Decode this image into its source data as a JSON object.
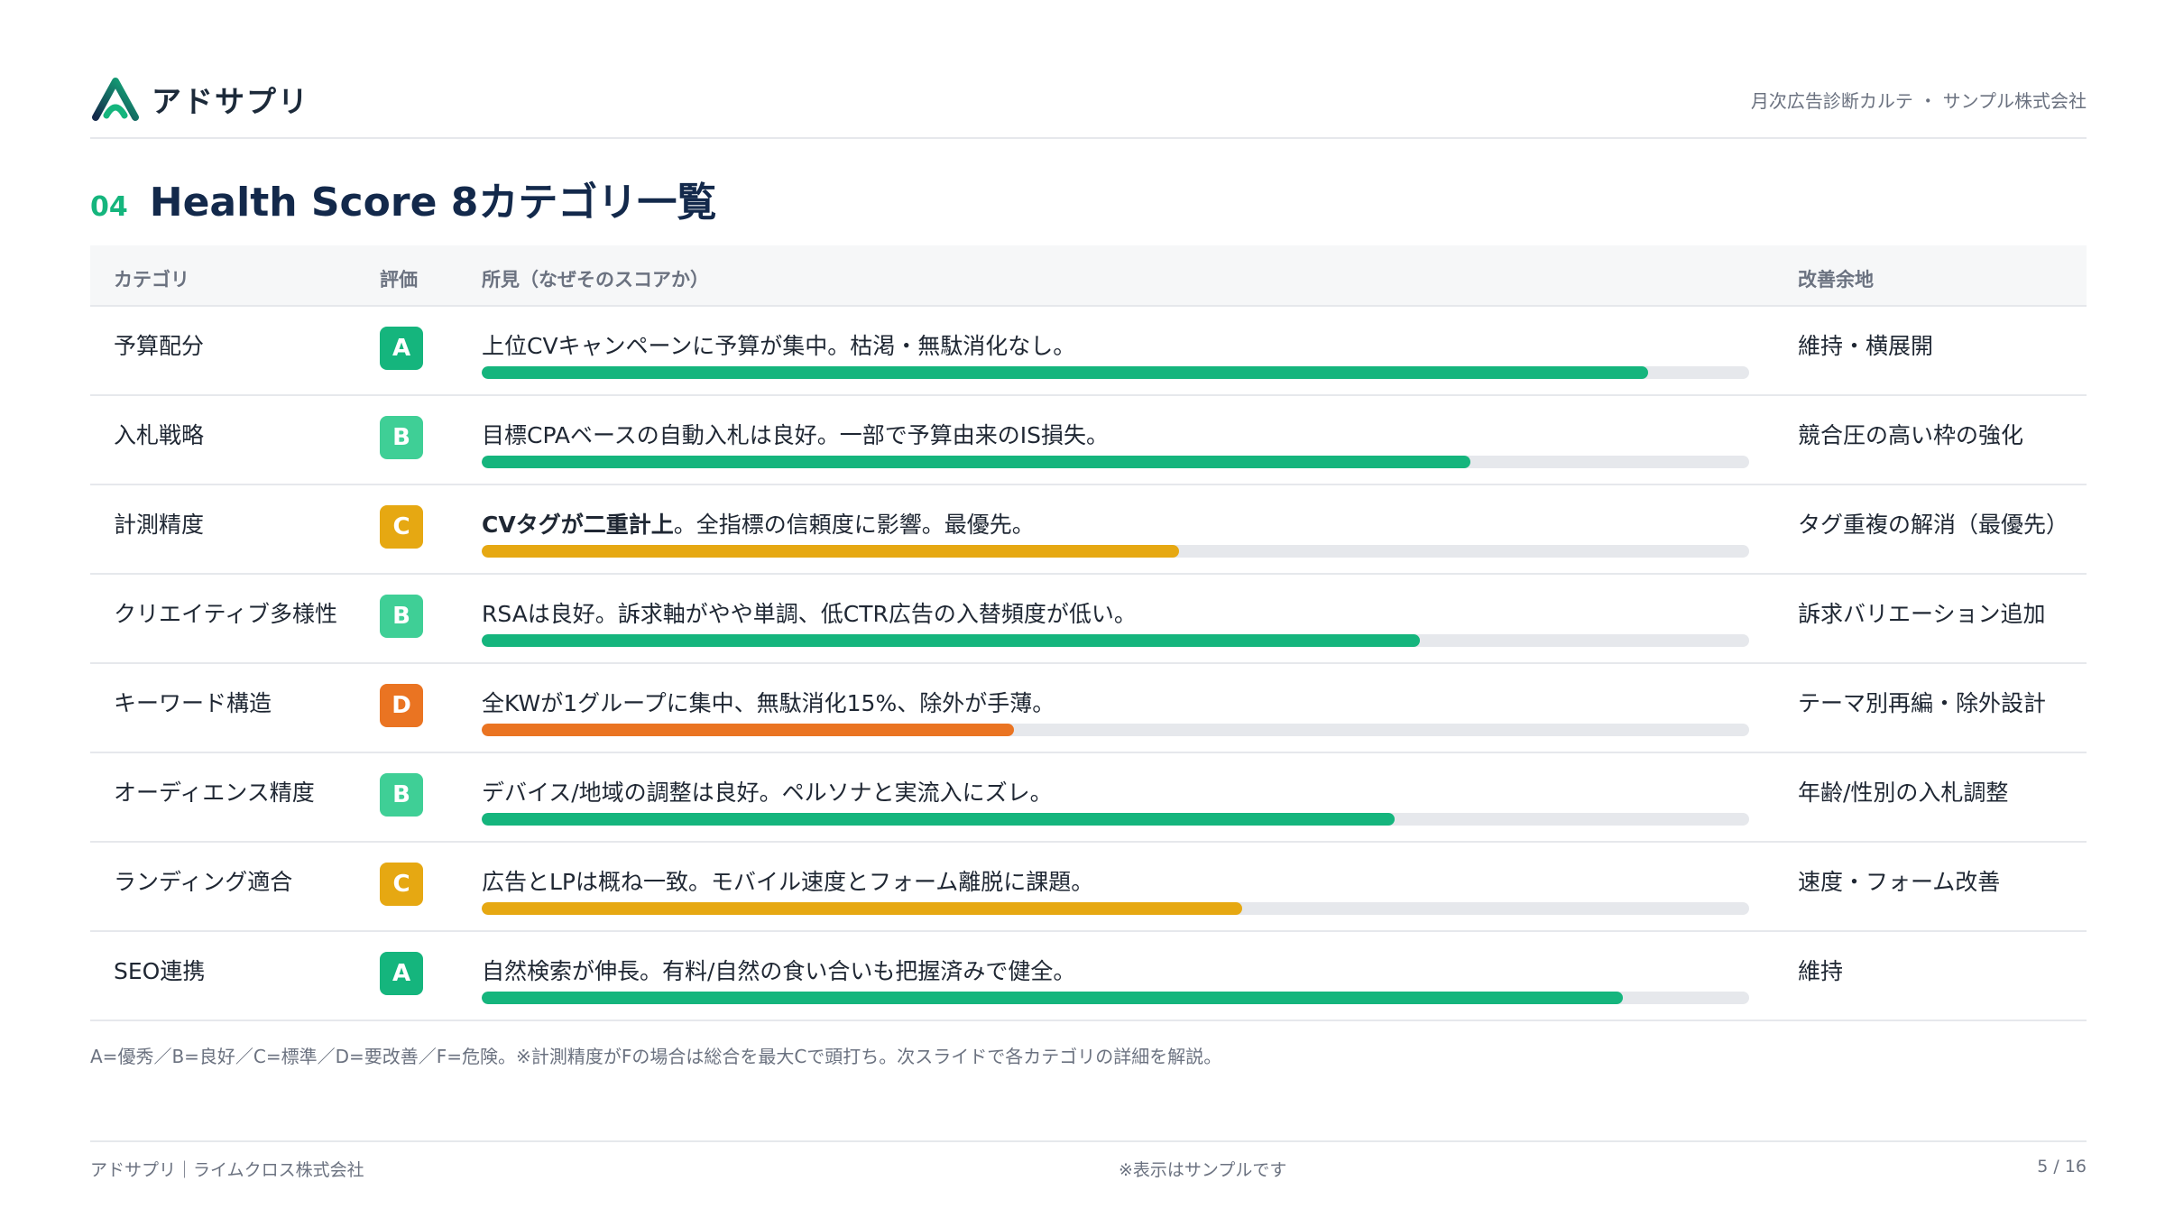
{
  "header": {
    "brand_name": "アドサプリ",
    "right_text": "月次広告診断カルテ ・ サンプル株式会社"
  },
  "title": {
    "number": "04",
    "text": "Health Score 8カテゴリ一覧"
  },
  "table": {
    "columns": [
      "カテゴリ",
      "評価",
      "所見（なぜそのスコアか）",
      "改善余地"
    ],
    "rows": [
      {
        "category": "予算配分",
        "grade": "A",
        "finding_bold": "",
        "finding": "上位CVキャンペーンに予算が集中。枯渇・無駄消化なし。",
        "bar_fraction": 0.92,
        "improvement": "維持・横展開"
      },
      {
        "category": "入札戦略",
        "grade": "B",
        "finding_bold": "",
        "finding": "目標CPAベースの自動入札は良好。一部で予算由来のIS損失。",
        "bar_fraction": 0.78,
        "improvement": "競合圧の高い枠の強化"
      },
      {
        "category": "計測精度",
        "grade": "C",
        "finding_bold": "CVタグが二重計上",
        "finding": "。全指標の信頼度に影響。最優先。",
        "bar_fraction": 0.55,
        "improvement": "タグ重複の解消（最優先）"
      },
      {
        "category": "クリエイティブ多様性",
        "grade": "B",
        "finding_bold": "",
        "finding": "RSAは良好。訴求軸がやや単調、低CTR広告の入替頻度が低い。",
        "bar_fraction": 0.74,
        "improvement": "訴求バリエーション追加"
      },
      {
        "category": "キーワード構造",
        "grade": "D",
        "finding_bold": "",
        "finding": "全KWが1グループに集中、無駄消化15%、除外が手薄。",
        "bar_fraction": 0.42,
        "improvement": "テーマ別再編・除外設計"
      },
      {
        "category": "オーディエンス精度",
        "grade": "B",
        "finding_bold": "",
        "finding": "デバイス/地域の調整は良好。ペルソナと実流入にズレ。",
        "bar_fraction": 0.72,
        "improvement": "年齢/性別の入札調整"
      },
      {
        "category": "ランディング適合",
        "grade": "C",
        "finding_bold": "",
        "finding": "広告とLPは概ね一致。モバイル速度とフォーム離脱に課題。",
        "bar_fraction": 0.6,
        "improvement": "速度・フォーム改善"
      },
      {
        "category": "SEO連携",
        "grade": "A",
        "finding_bold": "",
        "finding": "自然検索が伸長。有料/自然の食い合いも把握済みで健全。",
        "bar_fraction": 0.9,
        "improvement": "維持"
      }
    ]
  },
  "grade_colors": {
    "A": "#15b57d",
    "B": "#3fcf96",
    "C": "#e6a812",
    "D": "#ea7422"
  },
  "bar_colors": {
    "A": "#15b57d",
    "B": "#15b57d",
    "C": "#e6a812",
    "D": "#ea7422"
  },
  "legend": "A=優秀／B=良好／C=標準／D=要改善／F=危険。※計測精度がFの場合は総合を最大Cで頭打ち。次スライドで各カテゴリの詳細を解説。",
  "footer": {
    "left": "アドサプリ｜ライムクロス株式会社",
    "center": "※表示はサンプルです",
    "page": "5 / 16"
  }
}
